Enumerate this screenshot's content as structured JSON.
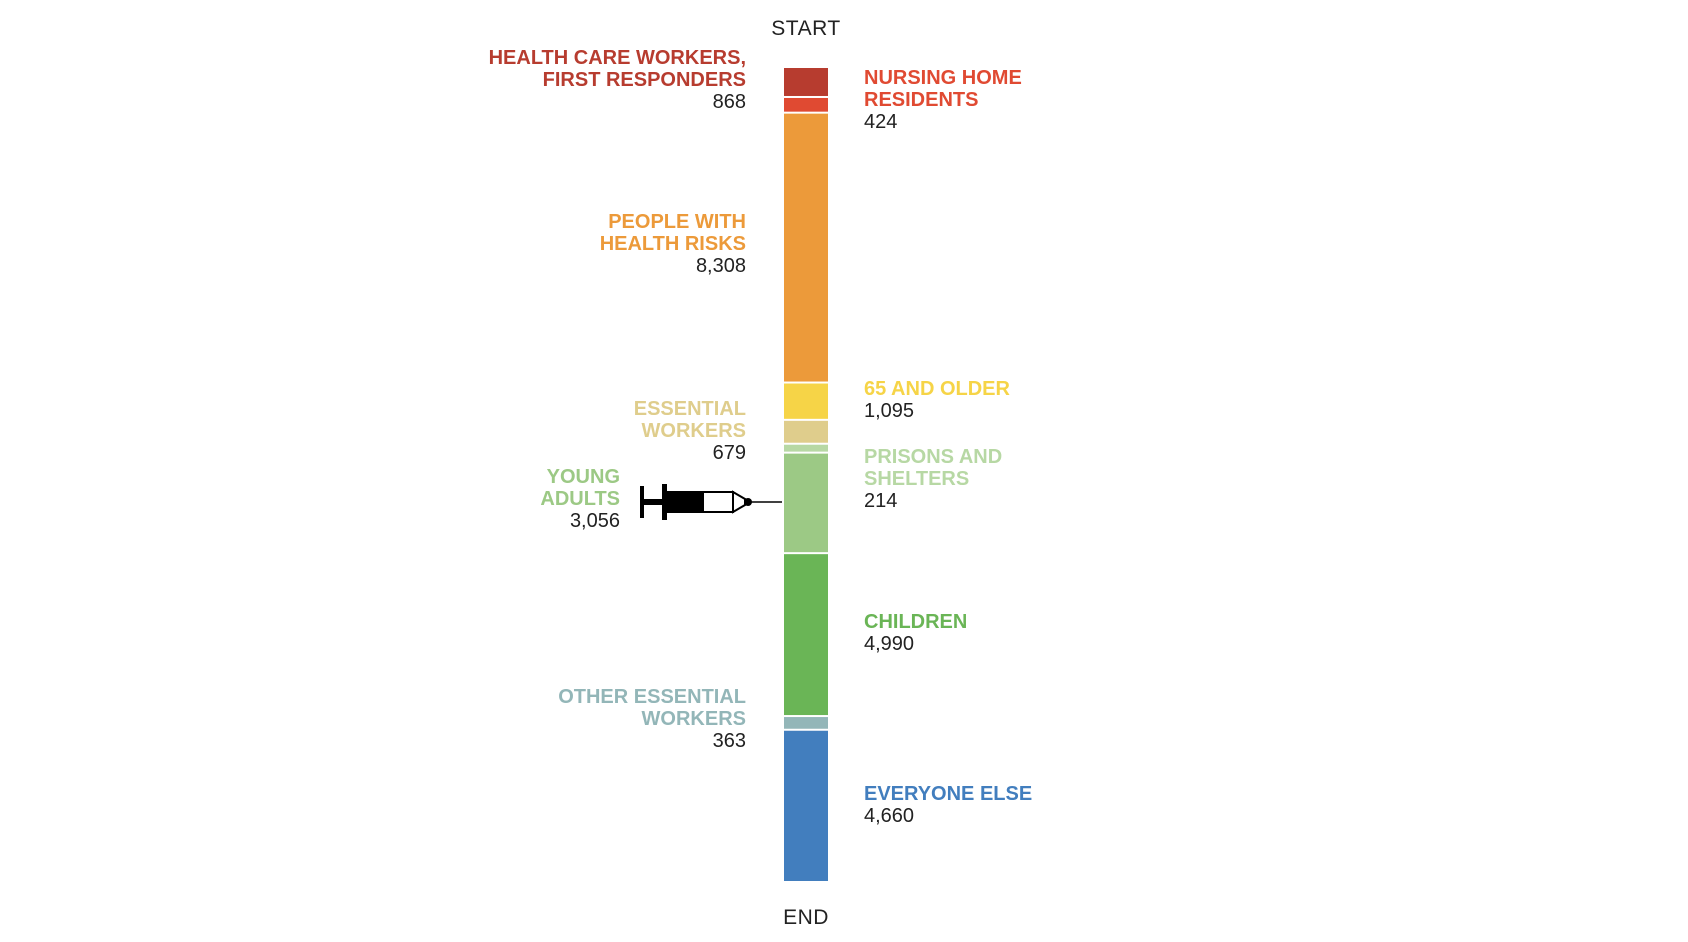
{
  "start_label": "START",
  "end_label": "END",
  "icons": {
    "pointer": "syringe-icon"
  },
  "chart_data": {
    "type": "bar",
    "orientation": "vertical-stacked",
    "title": "",
    "xlabel": "",
    "ylabel": "",
    "grid": false,
    "legend": "none",
    "pointer_after_category": "YOUNG ADULTS",
    "categories": [
      {
        "label_lines": [
          "HEALTH CARE WORKERS,",
          "FIRST RESPONDERS"
        ],
        "value": 868,
        "value_label": "868",
        "color": "#b73c2f",
        "side": "left"
      },
      {
        "label_lines": [
          "NURSING HOME",
          "RESIDENTS"
        ],
        "value": 424,
        "value_label": "424",
        "color": "#e04a32",
        "side": "right"
      },
      {
        "label_lines": [
          "PEOPLE WITH",
          "HEALTH RISKS"
        ],
        "value": 8308,
        "value_label": "8,308",
        "color": "#ec9a3a",
        "side": "left"
      },
      {
        "label_lines": [
          "65 AND OLDER"
        ],
        "value": 1095,
        "value_label": "1,095",
        "color": "#f6d447",
        "side": "right"
      },
      {
        "label_lines": [
          "ESSENTIAL",
          "WORKERS"
        ],
        "value": 679,
        "value_label": "679",
        "color": "#dfcd8c",
        "side": "left"
      },
      {
        "label_lines": [
          "PRISONS AND",
          "SHELTERS"
        ],
        "value": 214,
        "value_label": "214",
        "color": "#b7d8a4",
        "side": "right"
      },
      {
        "label_lines": [
          "YOUNG",
          "ADULTS"
        ],
        "value": 3056,
        "value_label": "3,056",
        "color": "#9cc985",
        "side": "left"
      },
      {
        "label_lines": [
          "CHILDREN"
        ],
        "value": 4990,
        "value_label": "4,990",
        "color": "#6ab556",
        "side": "right"
      },
      {
        "label_lines": [
          "OTHER ESSENTIAL",
          "WORKERS"
        ],
        "value": 363,
        "value_label": "363",
        "color": "#93b6b8",
        "side": "left"
      },
      {
        "label_lines": [
          "EVERYONE ELSE"
        ],
        "value": 4660,
        "value_label": "4,660",
        "color": "#427ebe",
        "side": "right"
      }
    ]
  }
}
